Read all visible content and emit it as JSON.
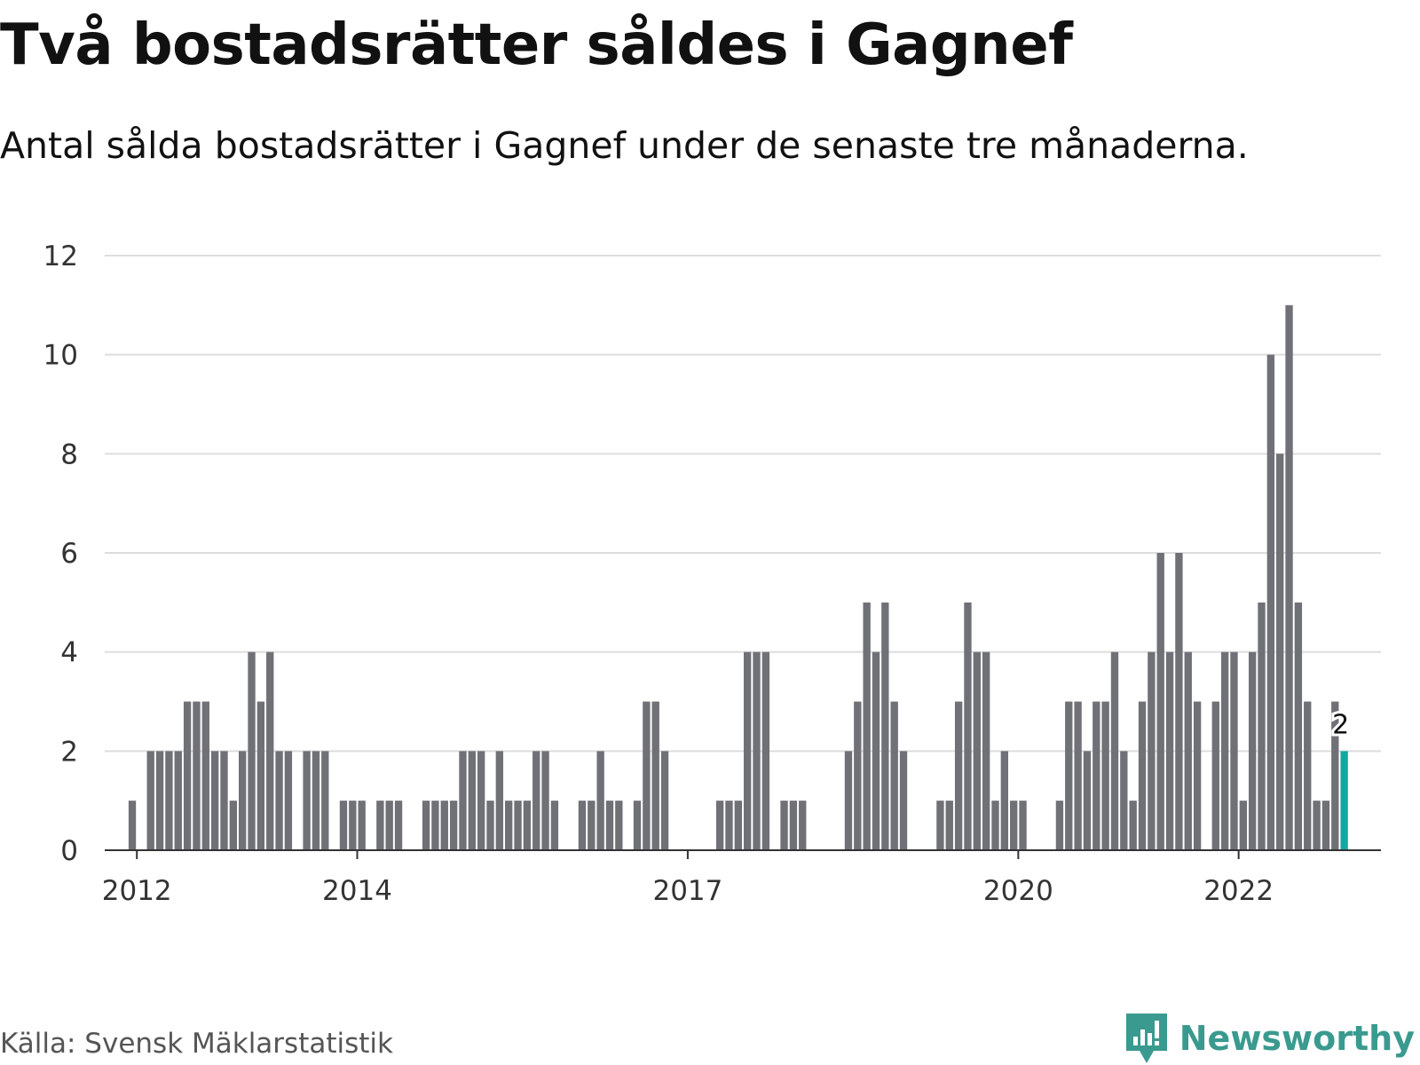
{
  "title": "Två bostadsrätter såldes i Gagnef",
  "subtitle": "Antal sålda bostadsrätter i Gagnef under de senaste tre månaderna.",
  "source": "Källa: Svensk Mäklarstatistik",
  "brand": {
    "name": "Newsworthy",
    "logo_icon": "newsworthy-chart-bubble-icon"
  },
  "colors": {
    "bar": "#707077",
    "highlight": "#13a89e",
    "grid": "#dddddd",
    "axis": "#333333",
    "brand": "#3a9a8f"
  },
  "chart_data": {
    "type": "bar",
    "title": "Två bostadsrätter såldes i Gagnef",
    "xlabel": "",
    "ylabel": "",
    "ylim": [
      0,
      12
    ],
    "yticks": [
      0,
      2,
      4,
      6,
      8,
      10,
      12
    ],
    "xlim": [
      "2011-09",
      "2023-04"
    ],
    "xticks": [
      {
        "month": "2012-01",
        "label": "2012"
      },
      {
        "month": "2014-01",
        "label": "2014"
      },
      {
        "month": "2017-01",
        "label": "2017"
      },
      {
        "month": "2020-01",
        "label": "2020"
      },
      {
        "month": "2022-01",
        "label": "2022"
      }
    ],
    "grid": true,
    "legend": "none",
    "series": [
      {
        "values": [
          {
            "month": "2011-12",
            "value": 1
          },
          {
            "month": "2012-02",
            "value": 2
          },
          {
            "month": "2012-03",
            "value": 2
          },
          {
            "month": "2012-04",
            "value": 2
          },
          {
            "month": "2012-05",
            "value": 2
          },
          {
            "month": "2012-06",
            "value": 3
          },
          {
            "month": "2012-07",
            "value": 3
          },
          {
            "month": "2012-08",
            "value": 3
          },
          {
            "month": "2012-09",
            "value": 2
          },
          {
            "month": "2012-10",
            "value": 2
          },
          {
            "month": "2012-11",
            "value": 1
          },
          {
            "month": "2012-12",
            "value": 2
          },
          {
            "month": "2013-01",
            "value": 4
          },
          {
            "month": "2013-02",
            "value": 3
          },
          {
            "month": "2013-03",
            "value": 4
          },
          {
            "month": "2013-04",
            "value": 2
          },
          {
            "month": "2013-05",
            "value": 2
          },
          {
            "month": "2013-07",
            "value": 2
          },
          {
            "month": "2013-08",
            "value": 2
          },
          {
            "month": "2013-09",
            "value": 2
          },
          {
            "month": "2013-11",
            "value": 1
          },
          {
            "month": "2013-12",
            "value": 1
          },
          {
            "month": "2014-01",
            "value": 1
          },
          {
            "month": "2014-03",
            "value": 1
          },
          {
            "month": "2014-04",
            "value": 1
          },
          {
            "month": "2014-05",
            "value": 1
          },
          {
            "month": "2014-08",
            "value": 1
          },
          {
            "month": "2014-09",
            "value": 1
          },
          {
            "month": "2014-10",
            "value": 1
          },
          {
            "month": "2014-11",
            "value": 1
          },
          {
            "month": "2014-12",
            "value": 2
          },
          {
            "month": "2015-01",
            "value": 2
          },
          {
            "month": "2015-02",
            "value": 2
          },
          {
            "month": "2015-03",
            "value": 1
          },
          {
            "month": "2015-04",
            "value": 2
          },
          {
            "month": "2015-05",
            "value": 1
          },
          {
            "month": "2015-06",
            "value": 1
          },
          {
            "month": "2015-07",
            "value": 1
          },
          {
            "month": "2015-08",
            "value": 2
          },
          {
            "month": "2015-09",
            "value": 2
          },
          {
            "month": "2015-10",
            "value": 1
          },
          {
            "month": "2016-01",
            "value": 1
          },
          {
            "month": "2016-02",
            "value": 1
          },
          {
            "month": "2016-03",
            "value": 2
          },
          {
            "month": "2016-04",
            "value": 1
          },
          {
            "month": "2016-05",
            "value": 1
          },
          {
            "month": "2016-07",
            "value": 1
          },
          {
            "month": "2016-08",
            "value": 3
          },
          {
            "month": "2016-09",
            "value": 3
          },
          {
            "month": "2016-10",
            "value": 2
          },
          {
            "month": "2017-04",
            "value": 1
          },
          {
            "month": "2017-05",
            "value": 1
          },
          {
            "month": "2017-06",
            "value": 1
          },
          {
            "month": "2017-07",
            "value": 4
          },
          {
            "month": "2017-08",
            "value": 4
          },
          {
            "month": "2017-09",
            "value": 4
          },
          {
            "month": "2017-11",
            "value": 1
          },
          {
            "month": "2017-12",
            "value": 1
          },
          {
            "month": "2018-01",
            "value": 1
          },
          {
            "month": "2018-06",
            "value": 2
          },
          {
            "month": "2018-07",
            "value": 3
          },
          {
            "month": "2018-08",
            "value": 5
          },
          {
            "month": "2018-09",
            "value": 4
          },
          {
            "month": "2018-10",
            "value": 5
          },
          {
            "month": "2018-11",
            "value": 3
          },
          {
            "month": "2018-12",
            "value": 2
          },
          {
            "month": "2019-04",
            "value": 1
          },
          {
            "month": "2019-05",
            "value": 1
          },
          {
            "month": "2019-06",
            "value": 3
          },
          {
            "month": "2019-07",
            "value": 5
          },
          {
            "month": "2019-08",
            "value": 4
          },
          {
            "month": "2019-09",
            "value": 4
          },
          {
            "month": "2019-10",
            "value": 1
          },
          {
            "month": "2019-11",
            "value": 2
          },
          {
            "month": "2019-12",
            "value": 1
          },
          {
            "month": "2020-01",
            "value": 1
          },
          {
            "month": "2020-05",
            "value": 1
          },
          {
            "month": "2020-06",
            "value": 3
          },
          {
            "month": "2020-07",
            "value": 3
          },
          {
            "month": "2020-08",
            "value": 2
          },
          {
            "month": "2020-09",
            "value": 3
          },
          {
            "month": "2020-10",
            "value": 3
          },
          {
            "month": "2020-11",
            "value": 4
          },
          {
            "month": "2020-12",
            "value": 2
          },
          {
            "month": "2021-01",
            "value": 1
          },
          {
            "month": "2021-02",
            "value": 3
          },
          {
            "month": "2021-03",
            "value": 4
          },
          {
            "month": "2021-04",
            "value": 6
          },
          {
            "month": "2021-05",
            "value": 4
          },
          {
            "month": "2021-06",
            "value": 6
          },
          {
            "month": "2021-07",
            "value": 4
          },
          {
            "month": "2021-08",
            "value": 3
          },
          {
            "month": "2021-10",
            "value": 3
          },
          {
            "month": "2021-11",
            "value": 4
          },
          {
            "month": "2021-12",
            "value": 4
          },
          {
            "month": "2022-01",
            "value": 1
          },
          {
            "month": "2022-02",
            "value": 4
          },
          {
            "month": "2022-03",
            "value": 5
          },
          {
            "month": "2022-04",
            "value": 10
          },
          {
            "month": "2022-05",
            "value": 8
          },
          {
            "month": "2022-06",
            "value": 11
          },
          {
            "month": "2022-07",
            "value": 5
          },
          {
            "month": "2022-08",
            "value": 3
          },
          {
            "month": "2022-09",
            "value": 1
          },
          {
            "month": "2022-10",
            "value": 1
          },
          {
            "month": "2022-11",
            "value": 3
          },
          {
            "month": "2022-12",
            "value": 2
          }
        ]
      }
    ],
    "highlight": {
      "month": "2022-12",
      "value": 2,
      "label": "2"
    }
  }
}
